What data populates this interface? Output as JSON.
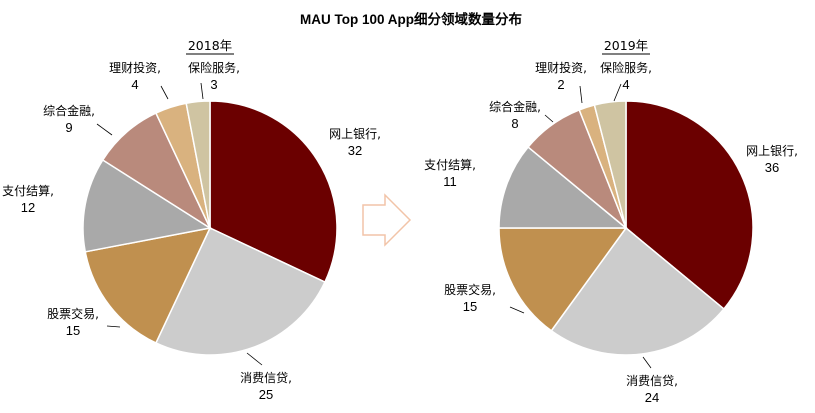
{
  "title": "MAU Top 100 App细分领域数量分布",
  "colors": {
    "网上银行": "#6b0000",
    "消费信贷": "#cccccc",
    "股票交易": "#c0904f",
    "支付结算": "#a9a9a9",
    "综合金融": "#b98a7c",
    "理财投资": "#d9b27f",
    "保险服务": "#cfc4a2"
  },
  "chart_data": [
    {
      "type": "pie",
      "title": "2018年",
      "categories": [
        "网上银行",
        "消费信贷",
        "股票交易",
        "支付结算",
        "综合金融",
        "理财投资",
        "保险服务"
      ],
      "values": [
        32,
        25,
        15,
        12,
        9,
        4,
        3
      ]
    },
    {
      "type": "pie",
      "title": "2019年",
      "categories": [
        "网上银行",
        "消费信贷",
        "股票交易",
        "支付结算",
        "综合金融",
        "理财投资",
        "保险服务"
      ],
      "values": [
        36,
        24,
        15,
        11,
        8,
        2,
        4
      ]
    }
  ]
}
